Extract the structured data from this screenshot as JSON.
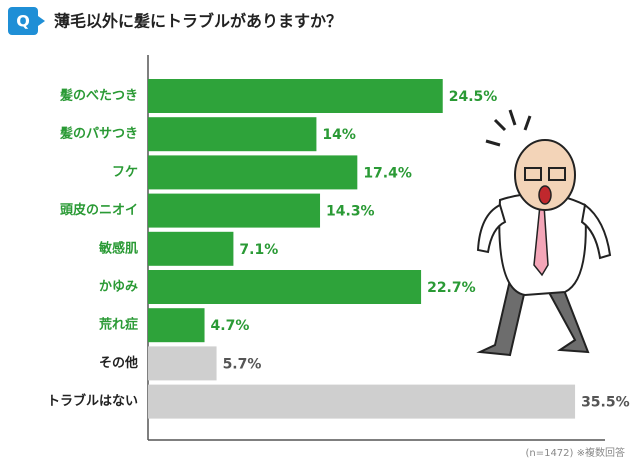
{
  "chart_data": {
    "type": "hbar",
    "badge": "Q",
    "title": "薄毛以外に髪にトラブルがありますか？",
    "categories": [
      "髪のべたつき",
      "髪のパサつき",
      "フケ",
      "頭皮のニオイ",
      "敏感肌",
      "かゆみ",
      "荒れ症",
      "その他",
      "トラブルはない"
    ],
    "values": [
      24.5,
      14,
      17.4,
      14.3,
      7.1,
      22.7,
      4.7,
      5.7,
      35.5
    ],
    "value_labels": [
      "24.5%",
      "14%",
      "17.4%",
      "14.3%",
      "7.1%",
      "22.7%",
      "4.7%",
      "5.7%",
      "35.5%"
    ],
    "colors": [
      "#2ea33a",
      "#2ea33a",
      "#2ea33a",
      "#2ea33a",
      "#2ea33a",
      "#2ea33a",
      "#2ea33a",
      "#cfcfcf",
      "#cfcfcf"
    ],
    "label_colors": [
      "#2a9a35",
      "#2a9a35",
      "#2a9a35",
      "#2a9a35",
      "#2a9a35",
      "#2a9a35",
      "#2a9a35",
      "#222222",
      "#222222"
    ],
    "note": "(n=1472) ※複数回答"
  }
}
